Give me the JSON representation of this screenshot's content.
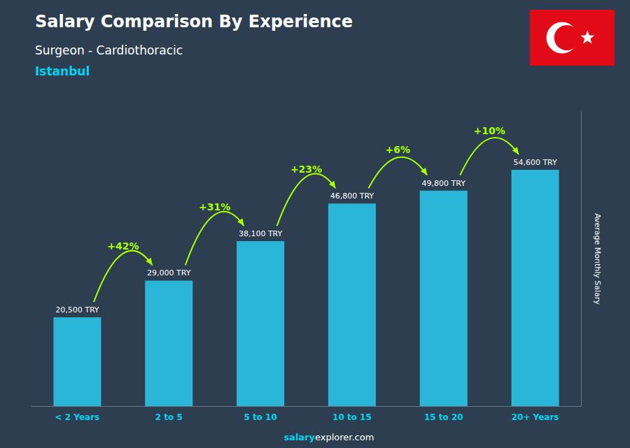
{
  "chart_data": {
    "type": "bar",
    "title": "Salary Comparison By Experience",
    "subtitle": [
      "Surgeon - Cardiothoracic",
      "Istanbul"
    ],
    "ylabel": "Average Monthly Salary",
    "categories": [
      "< 2 Years",
      "2 to 5",
      "5 to 10",
      "10 to 15",
      "15 to 20",
      "20+ Years"
    ],
    "values": [
      20500,
      29000,
      38100,
      46800,
      49800,
      54600
    ],
    "value_labels": [
      "20,500 TRY",
      "29,000 TRY",
      "38,100 TRY",
      "46,800 TRY",
      "49,800 TRY",
      "54,600 TRY"
    ],
    "data_labels": true,
    "change_labels": [
      "+42%",
      "+31%",
      "+23%",
      "+6%",
      "+10%"
    ],
    "footer": [
      "salary",
      "explorer.com"
    ],
    "color": "#29b6d8",
    "ylim": [
      0,
      68000
    ],
    "tick_labels": "x",
    "grid": false
  }
}
